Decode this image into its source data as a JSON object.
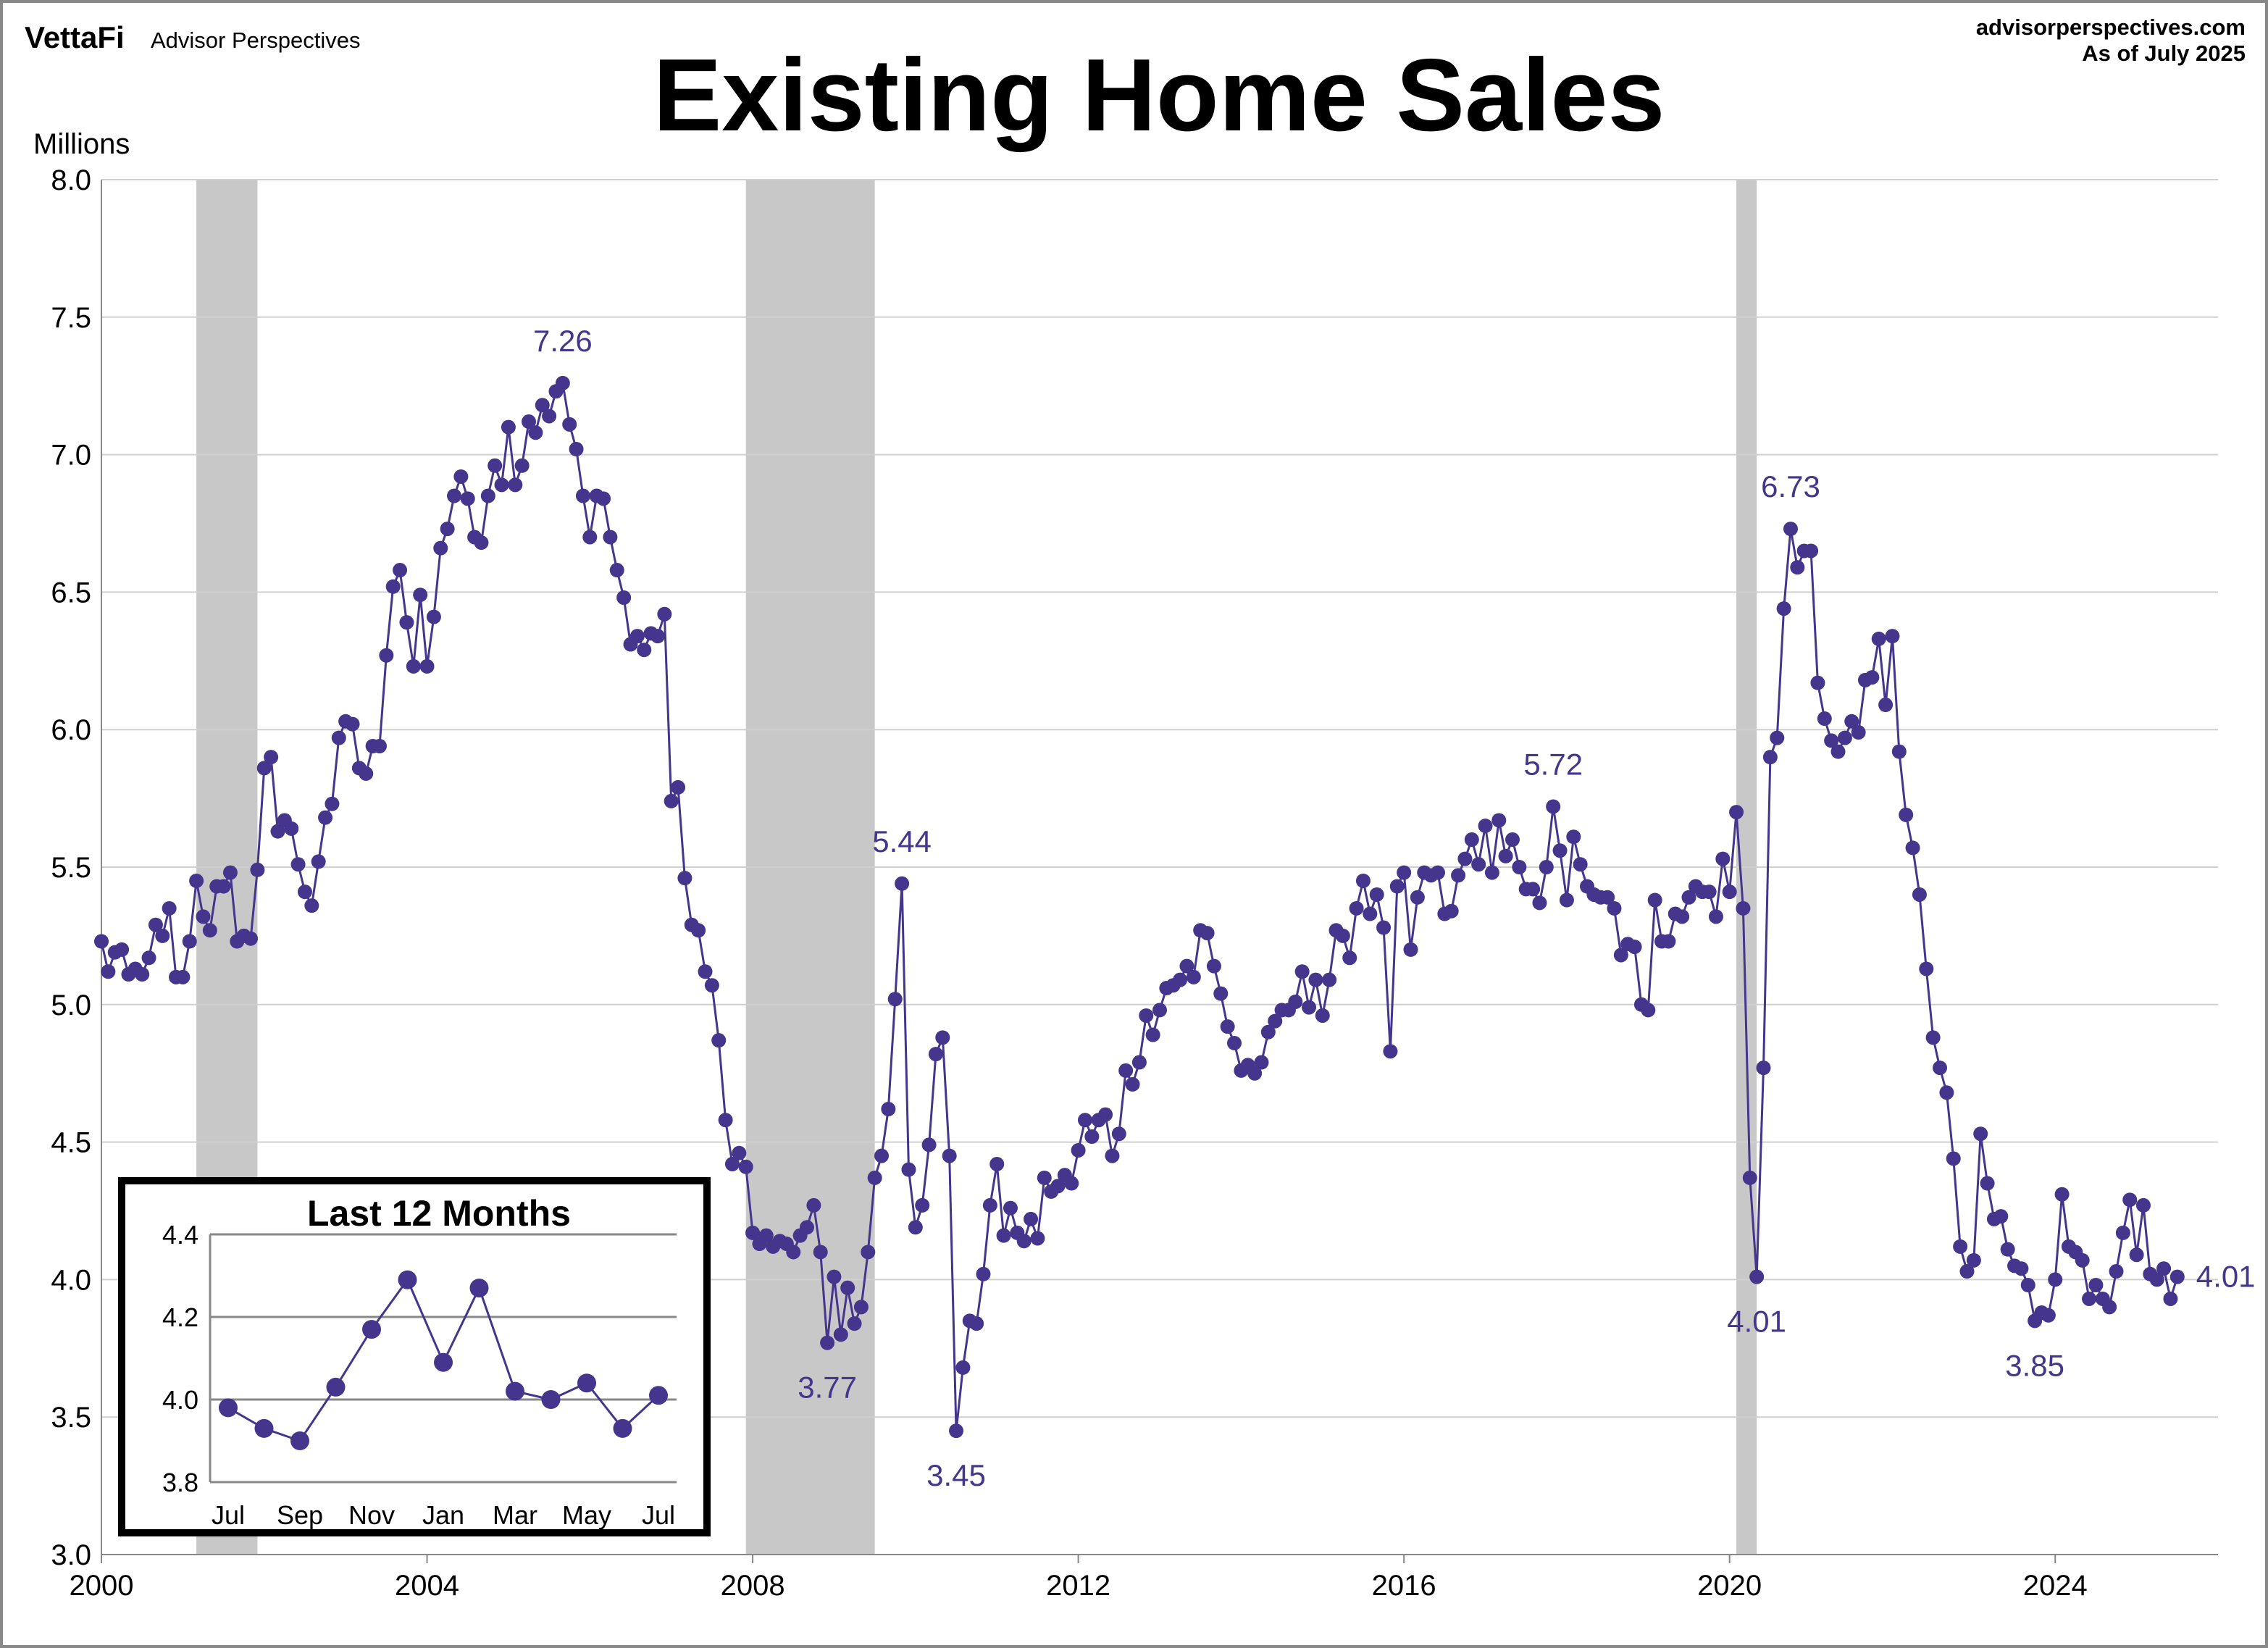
{
  "header": {
    "logo": "VettaFi",
    "brand": "Advisor Perspectives",
    "website": "advisorperspectives.com",
    "as_of": "As of July 2025"
  },
  "colors": {
    "series": "#45358c",
    "recession": "#c8c8c8",
    "grid": "#d0d0d0",
    "text": "#000000"
  },
  "chart_data": [
    {
      "type": "line",
      "title": "Existing Home Sales",
      "ylabel": "Millions",
      "xlabel": "",
      "ylim": [
        3.0,
        8.0
      ],
      "yticks": [
        "3.0",
        "3.5",
        "4.0",
        "4.5",
        "5.0",
        "5.5",
        "6.0",
        "6.5",
        "7.0",
        "7.5",
        "8.0"
      ],
      "xlim": [
        2000,
        2026
      ],
      "xticks": [
        "2000",
        "2004",
        "2008",
        "2012",
        "2016",
        "2020",
        "2024"
      ],
      "grid": true,
      "markers": true,
      "frequency": "monthly",
      "start": "2000-01",
      "recessions": [
        [
          "2001-03",
          "2001-11"
        ],
        [
          "2007-12",
          "2009-06"
        ],
        [
          "2020-02",
          "2020-04"
        ]
      ],
      "values": [
        5.23,
        5.12,
        5.19,
        5.2,
        5.11,
        5.13,
        5.11,
        5.17,
        5.29,
        5.25,
        5.35,
        5.1,
        5.1,
        5.23,
        5.45,
        5.32,
        5.27,
        5.43,
        5.43,
        5.48,
        5.23,
        5.25,
        5.24,
        5.49,
        5.86,
        5.9,
        5.63,
        5.67,
        5.64,
        5.51,
        5.41,
        5.36,
        5.52,
        5.68,
        5.73,
        5.97,
        6.03,
        6.02,
        5.86,
        5.84,
        5.94,
        5.94,
        6.27,
        6.52,
        6.58,
        6.39,
        6.23,
        6.49,
        6.23,
        6.41,
        6.66,
        6.73,
        6.85,
        6.92,
        6.84,
        6.7,
        6.68,
        6.85,
        6.96,
        6.89,
        7.1,
        6.89,
        6.96,
        7.12,
        7.08,
        7.18,
        7.14,
        7.23,
        7.26,
        7.11,
        7.02,
        6.85,
        6.7,
        6.85,
        6.84,
        6.7,
        6.58,
        6.48,
        6.31,
        6.34,
        6.29,
        6.35,
        6.34,
        6.42,
        5.74,
        5.79,
        5.46,
        5.29,
        5.27,
        5.12,
        5.07,
        4.87,
        4.58,
        4.42,
        4.46,
        4.41,
        4.17,
        4.13,
        4.16,
        4.12,
        4.14,
        4.13,
        4.1,
        4.16,
        4.19,
        4.27,
        4.1,
        3.77,
        4.01,
        3.8,
        3.97,
        3.84,
        3.9,
        4.1,
        4.37,
        4.45,
        4.62,
        5.02,
        5.44,
        4.4,
        4.19,
        4.27,
        4.49,
        4.82,
        4.88,
        4.45,
        3.45,
        3.68,
        3.85,
        3.84,
        4.02,
        4.27,
        4.42,
        4.16,
        4.26,
        4.17,
        4.14,
        4.22,
        4.15,
        4.37,
        4.32,
        4.34,
        4.38,
        4.35,
        4.47,
        4.58,
        4.52,
        4.58,
        4.6,
        4.45,
        4.53,
        4.76,
        4.71,
        4.79,
        4.96,
        4.89,
        4.98,
        5.06,
        5.07,
        5.09,
        5.14,
        5.1,
        5.27,
        5.26,
        5.14,
        5.04,
        4.92,
        4.86,
        4.76,
        4.78,
        4.75,
        4.79,
        4.9,
        4.94,
        4.98,
        4.98,
        5.01,
        5.12,
        4.99,
        5.09,
        4.96,
        5.09,
        5.27,
        5.25,
        5.17,
        5.35,
        5.45,
        5.33,
        5.4,
        5.28,
        4.83,
        5.43,
        5.48,
        5.2,
        5.39,
        5.48,
        5.47,
        5.48,
        5.33,
        5.34,
        5.47,
        5.53,
        5.6,
        5.51,
        5.65,
        5.48,
        5.67,
        5.54,
        5.6,
        5.5,
        5.42,
        5.42,
        5.37,
        5.5,
        5.72,
        5.56,
        5.38,
        5.61,
        5.51,
        5.43,
        5.4,
        5.39,
        5.39,
        5.35,
        5.18,
        5.22,
        5.21,
        5.0,
        4.98,
        5.38,
        5.23,
        5.23,
        5.33,
        5.32,
        5.39,
        5.43,
        5.41,
        5.41,
        5.32,
        5.53,
        5.41,
        5.7,
        5.35,
        4.37,
        4.01,
        4.77,
        5.9,
        5.97,
        6.44,
        6.73,
        6.59,
        6.65,
        6.65,
        6.17,
        6.04,
        5.96,
        5.92,
        5.97,
        6.03,
        5.99,
        6.18,
        6.19,
        6.33,
        6.09,
        6.34,
        5.92,
        5.69,
        5.57,
        5.4,
        5.13,
        4.88,
        4.77,
        4.68,
        4.44,
        4.12,
        4.03,
        4.07,
        4.53,
        4.35,
        4.22,
        4.23,
        4.11,
        4.05,
        4.04,
        3.98,
        3.85,
        3.88,
        3.87,
        4.0,
        4.31,
        4.12,
        4.1,
        4.07,
        3.93,
        3.98,
        3.93,
        3.9,
        4.03,
        4.17,
        4.29,
        4.09,
        4.27,
        4.02,
        4.0,
        4.04,
        3.93,
        4.01
      ],
      "annotations": [
        {
          "month": "2005-09",
          "label": "7.26",
          "position": "above"
        },
        {
          "month": "2008-12",
          "label": "3.77",
          "position": "below"
        },
        {
          "month": "2009-11",
          "label": "5.44",
          "position": "above"
        },
        {
          "month": "2010-07",
          "label": "3.45",
          "position": "below"
        },
        {
          "month": "2017-11",
          "label": "5.72",
          "position": "above"
        },
        {
          "month": "2020-10",
          "label": "6.73",
          "position": "above"
        },
        {
          "month": "2020-05",
          "label": "4.01",
          "position": "below"
        },
        {
          "month": "2023-10",
          "label": "3.85",
          "position": "below"
        },
        {
          "month": "2025-07",
          "label": "4.01",
          "position": "right"
        }
      ]
    },
    {
      "type": "line",
      "title": "Last 12 Months",
      "ylim": [
        3.8,
        4.4
      ],
      "yticks": [
        "3.8",
        "4.0",
        "4.2",
        "4.4"
      ],
      "categories": [
        "Jul",
        "Aug",
        "Sep",
        "Oct",
        "Nov",
        "Dec",
        "Jan",
        "Feb",
        "Mar",
        "Apr",
        "May",
        "Jun",
        "Jul"
      ],
      "xticks": [
        "Jul",
        "Sep",
        "Nov",
        "Jan",
        "Mar",
        "May",
        "Jul"
      ],
      "values": [
        3.98,
        3.93,
        3.9,
        4.03,
        4.17,
        4.29,
        4.09,
        4.27,
        4.02,
        4.0,
        4.04,
        3.93,
        4.01
      ],
      "grid": true
    }
  ]
}
